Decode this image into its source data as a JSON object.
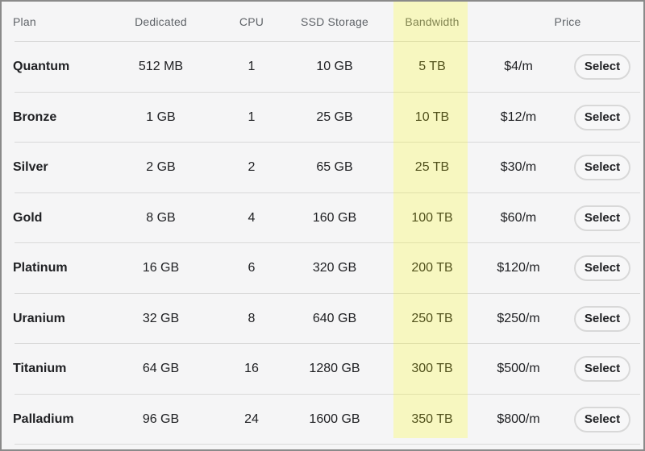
{
  "table": {
    "headers": {
      "plan": "Plan",
      "dedicated": "Dedicated",
      "cpu": "CPU",
      "ssd": "SSD Storage",
      "bandwidth": "Bandwidth",
      "price": "Price"
    },
    "select_label": "Select",
    "highlighted_column": "Bandwidth",
    "rows": [
      {
        "plan": "Quantum",
        "dedicated": "512 MB",
        "cpu": "1",
        "ssd": "10 GB",
        "bandwidth": "5 TB",
        "price": "$4/m"
      },
      {
        "plan": "Bronze",
        "dedicated": "1 GB",
        "cpu": "1",
        "ssd": "25 GB",
        "bandwidth": "10 TB",
        "price": "$12/m"
      },
      {
        "plan": "Silver",
        "dedicated": "2 GB",
        "cpu": "2",
        "ssd": "65 GB",
        "bandwidth": "25 TB",
        "price": "$30/m"
      },
      {
        "plan": "Gold",
        "dedicated": "8 GB",
        "cpu": "4",
        "ssd": "160 GB",
        "bandwidth": "100 TB",
        "price": "$60/m"
      },
      {
        "plan": "Platinum",
        "dedicated": "16 GB",
        "cpu": "6",
        "ssd": "320 GB",
        "bandwidth": "200 TB",
        "price": "$120/m"
      },
      {
        "plan": "Uranium",
        "dedicated": "32 GB",
        "cpu": "8",
        "ssd": "640 GB",
        "bandwidth": "250 TB",
        "price": "$250/m"
      },
      {
        "plan": "Titanium",
        "dedicated": "64 GB",
        "cpu": "16",
        "ssd": "1280 GB",
        "bandwidth": "300 TB",
        "price": "$500/m"
      },
      {
        "plan": "Palladium",
        "dedicated": "96 GB",
        "cpu": "24",
        "ssd": "1600 GB",
        "bandwidth": "350 TB",
        "price": "$800/m"
      }
    ],
    "colors": {
      "background": "#f5f5f6",
      "outer_border": "#8a8a8a",
      "row_separator": "#d9d9d9",
      "bandwidth_highlight": "rgba(255,255,0,0.22)",
      "header_text": "#5f6368",
      "body_text": "#202124",
      "button_border": "#d8d8d8"
    }
  }
}
